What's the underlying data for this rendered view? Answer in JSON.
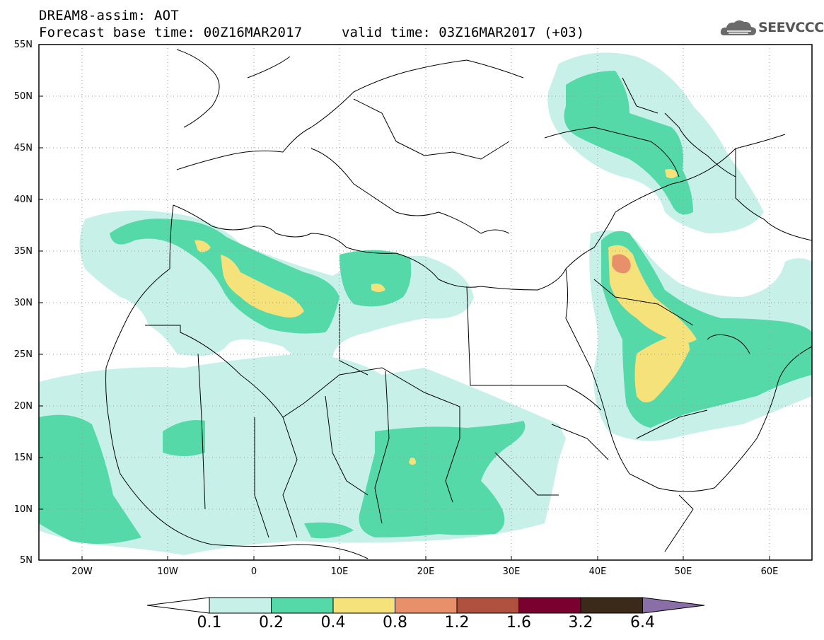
{
  "header": {
    "title": "DREAM8-assim: AOT",
    "base_time": "Forecast base time: 00Z16MAR2017",
    "valid_time": "valid time: 03Z16MAR2017 (+03)"
  },
  "logo": {
    "text": "SEEVCCC",
    "icon": "cloud-icon"
  },
  "map": {
    "latitude_labels": [
      "55N",
      "50N",
      "45N",
      "40N",
      "35N",
      "30N",
      "25N",
      "20N",
      "15N",
      "10N",
      "5N"
    ],
    "longitude_labels": [
      "20W",
      "10W",
      "0",
      "10E",
      "20E",
      "30E",
      "40E",
      "50E",
      "60E"
    ],
    "ocean_color": "#ffffff",
    "border_color": "#000000"
  },
  "colorbar": {
    "labels": [
      "0.1",
      "0.2",
      "0.4",
      "0.8",
      "1.2",
      "1.6",
      "3.2",
      "6.4"
    ],
    "colors": [
      "#ffffff",
      "#c6f0e8",
      "#55d9a8",
      "#f6e27a",
      "#e8906a",
      "#b0503e",
      "#7a0030",
      "#3b2a1a",
      "#8a6ea8"
    ]
  }
}
